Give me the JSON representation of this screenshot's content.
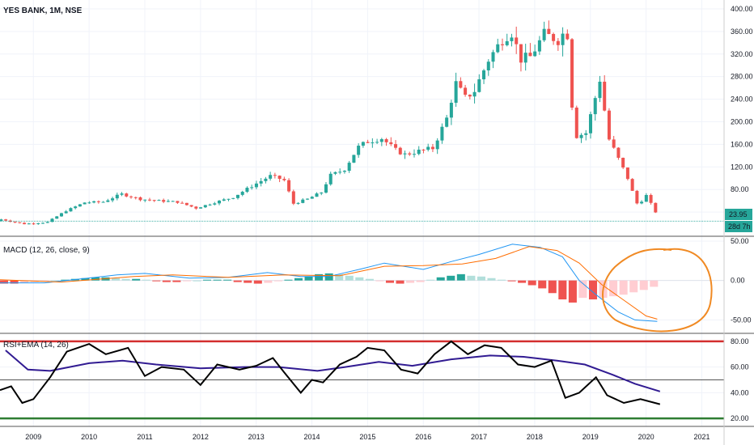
{
  "chart_data": [
    {
      "type": "candlestick",
      "title": "YES BANK, 1M, NSE",
      "y_ticks": [
        "400.00",
        "360.00",
        "320.00",
        "280.00",
        "240.00",
        "200.00",
        "160.00",
        "120.00",
        "80.00",
        "40.00"
      ],
      "y_range": [
        0,
        410
      ],
      "x_ticks": [
        "2009",
        "2010",
        "2011",
        "2012",
        "2013",
        "2014",
        "2015",
        "2016",
        "2017",
        "2018",
        "2019",
        "2020",
        "2021"
      ],
      "x_range": [
        2008.4,
        2021.4
      ],
      "last_price_label": "23.95",
      "countdown_label": "28d 7h",
      "up_color": "#26a69a",
      "down_color": "#ef5350",
      "series": [
        {
          "name": "price",
          "points": [
            [
              2008.42,
              27
            ],
            [
              2008.83,
              19
            ],
            [
              2009.25,
              22
            ],
            [
              2009.58,
              42
            ],
            [
              2009.92,
              57
            ],
            [
              2010.25,
              58
            ],
            [
              2010.58,
              72
            ],
            [
              2010.92,
              63
            ],
            [
              2011.25,
              60
            ],
            [
              2011.58,
              58
            ],
            [
              2011.92,
              47
            ],
            [
              2012.25,
              57
            ],
            [
              2012.58,
              66
            ],
            [
              2012.92,
              86
            ],
            [
              2013.25,
              104
            ],
            [
              2013.5,
              97
            ],
            [
              2013.67,
              55
            ],
            [
              2013.92,
              63
            ],
            [
              2014.17,
              75
            ],
            [
              2014.33,
              105
            ],
            [
              2014.58,
              115
            ],
            [
              2014.83,
              155
            ],
            [
              2015.0,
              165
            ],
            [
              2015.25,
              171
            ],
            [
              2015.5,
              150
            ],
            [
              2015.67,
              142
            ],
            [
              2015.92,
              148
            ],
            [
              2016.17,
              153
            ],
            [
              2016.42,
              206
            ],
            [
              2016.58,
              269
            ],
            [
              2016.75,
              242
            ],
            [
              2016.92,
              255
            ],
            [
              2017.17,
              310
            ],
            [
              2017.42,
              346
            ],
            [
              2017.58,
              360
            ],
            [
              2017.75,
              311
            ],
            [
              2017.92,
              315
            ],
            [
              2018.17,
              355
            ],
            [
              2018.42,
              345
            ],
            [
              2018.58,
              365
            ],
            [
              2018.67,
              230
            ],
            [
              2018.75,
              175
            ],
            [
              2018.92,
              180
            ],
            [
              2019.08,
              240
            ],
            [
              2019.17,
              275
            ],
            [
              2019.33,
              170
            ],
            [
              2019.5,
              135
            ],
            [
              2019.67,
              100
            ],
            [
              2019.83,
              55
            ],
            [
              2019.92,
              60
            ],
            [
              2020.0,
              70
            ],
            [
              2020.17,
              40
            ],
            [
              2020.25,
              23.95
            ]
          ]
        }
      ]
    },
    {
      "type": "line",
      "title": "MACD (12, 26, close, 9)",
      "y_ticks": [
        "50.00",
        "0.00",
        "-50.00"
      ],
      "y_range": [
        -65,
        52
      ],
      "series": [
        {
          "name": "",
          "color": "#2196f3",
          "points": [
            [
              2008.4,
              -3
            ],
            [
              2009.2,
              -3
            ],
            [
              2010.5,
              7
            ],
            [
              2011.0,
              9
            ],
            [
              2011.8,
              3
            ],
            [
              2012.5,
              4
            ],
            [
              2013.2,
              10
            ],
            [
              2013.8,
              5
            ],
            [
              2014.3,
              5
            ],
            [
              2014.9,
              15
            ],
            [
              2015.3,
              22
            ],
            [
              2016.0,
              14
            ],
            [
              2016.5,
              24
            ],
            [
              2017.0,
              33
            ],
            [
              2017.6,
              46
            ],
            [
              2018.1,
              42
            ],
            [
              2018.5,
              30
            ],
            [
              2018.8,
              0
            ],
            [
              2019.1,
              -18
            ],
            [
              2019.5,
              -40
            ],
            [
              2019.8,
              -50
            ],
            [
              2020.2,
              -52
            ]
          ]
        },
        {
          "name": "",
          "color": "#ff6d00",
          "points": [
            [
              2008.4,
              1
            ],
            [
              2009.5,
              -2
            ],
            [
              2010.8,
              5
            ],
            [
              2011.5,
              7
            ],
            [
              2012.5,
              4
            ],
            [
              2013.5,
              7
            ],
            [
              2014.5,
              6
            ],
            [
              2015.3,
              18
            ],
            [
              2016.0,
              19
            ],
            [
              2016.7,
              21
            ],
            [
              2017.3,
              28
            ],
            [
              2017.9,
              43
            ],
            [
              2018.4,
              38
            ],
            [
              2018.8,
              22
            ],
            [
              2019.2,
              -5
            ],
            [
              2019.6,
              -25
            ],
            [
              2020.0,
              -45
            ],
            [
              2020.2,
              -49
            ]
          ]
        }
      ],
      "histogram": [
        -4,
        -4,
        -3,
        -2,
        -1,
        0,
        1,
        2,
        3,
        4,
        4,
        3,
        2,
        2,
        1,
        -1,
        -2,
        -2,
        -1,
        0,
        1,
        1,
        1,
        -2,
        -3,
        -4,
        -3,
        -1,
        1,
        3,
        5,
        8,
        9,
        8,
        6,
        4,
        2,
        -1,
        -3,
        -4,
        -3,
        -2,
        1,
        4,
        6,
        8,
        6,
        5,
        3,
        1,
        -1,
        -3,
        -6,
        -10,
        -16,
        -24,
        -28,
        -22,
        -24,
        -22,
        -20,
        -18,
        -15,
        -12,
        -8
      ],
      "annotation": "circled"
    },
    {
      "type": "line",
      "title": "RSI+EMA (14, 26)",
      "y_ticks": [
        "80.00",
        "60.00",
        "40.00",
        "20.00"
      ],
      "y_range": [
        15,
        85
      ],
      "bands": [
        80,
        50,
        20
      ],
      "series": [
        {
          "name": "",
          "color": "#000000",
          "points": [
            [
              2008.4,
              42
            ],
            [
              2008.6,
              45
            ],
            [
              2008.8,
              32
            ],
            [
              2009.0,
              35
            ],
            [
              2009.3,
              52
            ],
            [
              2009.6,
              72
            ],
            [
              2010.0,
              78
            ],
            [
              2010.3,
              70
            ],
            [
              2010.7,
              75
            ],
            [
              2011.0,
              53
            ],
            [
              2011.3,
              60
            ],
            [
              2011.7,
              58
            ],
            [
              2012.0,
              46
            ],
            [
              2012.3,
              62
            ],
            [
              2012.7,
              58
            ],
            [
              2013.0,
              61
            ],
            [
              2013.3,
              67
            ],
            [
              2013.5,
              56
            ],
            [
              2013.8,
              40
            ],
            [
              2014.0,
              50
            ],
            [
              2014.2,
              48
            ],
            [
              2014.5,
              62
            ],
            [
              2014.8,
              68
            ],
            [
              2015.0,
              75
            ],
            [
              2015.3,
              73
            ],
            [
              2015.6,
              58
            ],
            [
              2015.9,
              55
            ],
            [
              2016.2,
              70
            ],
            [
              2016.5,
              80
            ],
            [
              2016.8,
              70
            ],
            [
              2017.1,
              77
            ],
            [
              2017.4,
              75
            ],
            [
              2017.7,
              62
            ],
            [
              2018.0,
              60
            ],
            [
              2018.3,
              65
            ],
            [
              2018.55,
              36
            ],
            [
              2018.8,
              40
            ],
            [
              2019.1,
              52
            ],
            [
              2019.3,
              38
            ],
            [
              2019.6,
              32
            ],
            [
              2019.9,
              35
            ],
            [
              2020.25,
              31
            ]
          ]
        },
        {
          "name": "",
          "color": "#311b92",
          "points": [
            [
              2008.5,
              73
            ],
            [
              2008.9,
              58
            ],
            [
              2009.3,
              57
            ],
            [
              2010.0,
              63
            ],
            [
              2010.6,
              65
            ],
            [
              2011.2,
              62
            ],
            [
              2012.0,
              59
            ],
            [
              2012.8,
              60
            ],
            [
              2013.4,
              60
            ],
            [
              2014.1,
              57
            ],
            [
              2014.6,
              60
            ],
            [
              2015.2,
              64
            ],
            [
              2015.8,
              61
            ],
            [
              2016.5,
              66
            ],
            [
              2017.2,
              69
            ],
            [
              2017.8,
              68
            ],
            [
              2018.4,
              65
            ],
            [
              2018.9,
              62
            ],
            [
              2019.4,
              54
            ],
            [
              2019.8,
              47
            ],
            [
              2020.25,
              41
            ]
          ]
        }
      ]
    }
  ]
}
